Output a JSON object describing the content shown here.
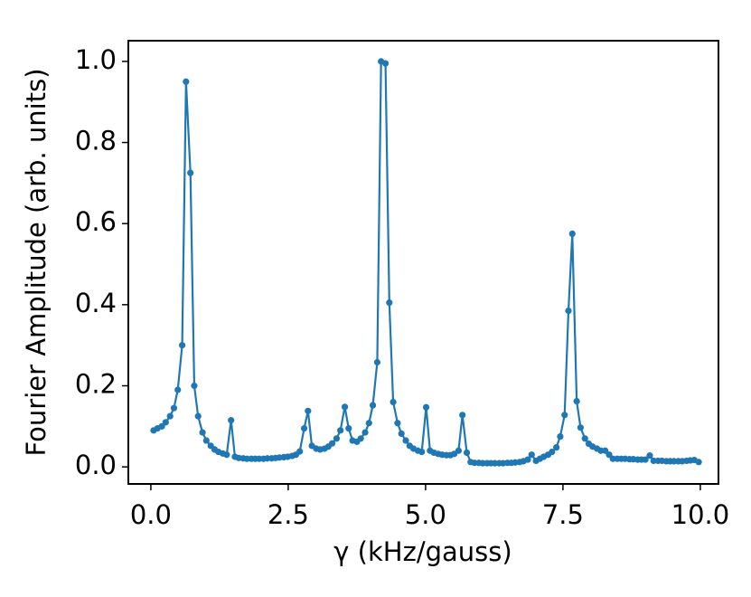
{
  "chart_data": {
    "type": "line",
    "xlabel": "γ (kHz/gauss)",
    "ylabel": "Fourier Amplitude (arb. units)",
    "x": [
      0.05,
      0.12,
      0.2,
      0.27,
      0.35,
      0.42,
      0.49,
      0.57,
      0.64,
      0.72,
      0.79,
      0.86,
      0.94,
      1.01,
      1.09,
      1.16,
      1.23,
      1.31,
      1.38,
      1.46,
      1.53,
      1.6,
      1.68,
      1.75,
      1.83,
      1.9,
      1.97,
      2.05,
      2.12,
      2.2,
      2.27,
      2.34,
      2.42,
      2.49,
      2.57,
      2.64,
      2.71,
      2.79,
      2.86,
      2.93,
      3.01,
      3.08,
      3.16,
      3.23,
      3.3,
      3.38,
      3.45,
      3.53,
      3.6,
      3.67,
      3.75,
      3.82,
      3.9,
      3.97,
      4.04,
      4.12,
      4.19,
      4.27,
      4.34,
      4.41,
      4.49,
      4.56,
      4.64,
      4.71,
      4.78,
      4.86,
      4.93,
      5.01,
      5.08,
      5.15,
      5.23,
      5.3,
      5.38,
      5.45,
      5.52,
      5.6,
      5.67,
      5.75,
      5.82,
      5.89,
      5.97,
      6.04,
      6.12,
      6.19,
      6.26,
      6.34,
      6.41,
      6.49,
      6.56,
      6.63,
      6.71,
      6.78,
      6.86,
      6.93,
      7.01,
      7.08,
      7.15,
      7.23,
      7.3,
      7.38,
      7.45,
      7.53,
      7.6,
      7.67,
      7.75,
      7.82,
      7.9,
      7.97,
      8.04,
      8.12,
      8.19,
      8.27,
      8.34,
      8.41,
      8.49,
      8.56,
      8.63,
      8.71,
      8.78,
      8.86,
      8.93,
      9.0,
      9.08,
      9.15,
      9.23,
      9.3,
      9.38,
      9.45,
      9.52,
      9.6,
      9.67,
      9.75,
      9.82,
      9.89,
      9.97
    ],
    "series": [
      {
        "color": "#1f77b4",
        "values": [
          0.09,
          0.095,
          0.1,
          0.11,
          0.125,
          0.145,
          0.19,
          0.3,
          0.95,
          0.725,
          0.2,
          0.125,
          0.085,
          0.065,
          0.052,
          0.043,
          0.037,
          0.033,
          0.03,
          0.115,
          0.025,
          0.022,
          0.021,
          0.02,
          0.02,
          0.02,
          0.02,
          0.02,
          0.021,
          0.021,
          0.022,
          0.023,
          0.024,
          0.025,
          0.027,
          0.03,
          0.038,
          0.095,
          0.138,
          0.052,
          0.045,
          0.043,
          0.045,
          0.05,
          0.058,
          0.07,
          0.09,
          0.148,
          0.095,
          0.065,
          0.062,
          0.07,
          0.085,
          0.108,
          0.152,
          0.258,
          1.0,
          0.995,
          0.405,
          0.16,
          0.108,
          0.082,
          0.065,
          0.052,
          0.045,
          0.04,
          0.037,
          0.147,
          0.04,
          0.035,
          0.032,
          0.03,
          0.029,
          0.029,
          0.032,
          0.04,
          0.128,
          0.035,
          0.012,
          0.01,
          0.01,
          0.009,
          0.009,
          0.009,
          0.009,
          0.009,
          0.009,
          0.01,
          0.01,
          0.011,
          0.012,
          0.014,
          0.018,
          0.03,
          0.015,
          0.02,
          0.025,
          0.03,
          0.037,
          0.048,
          0.075,
          0.128,
          0.385,
          0.575,
          0.162,
          0.097,
          0.07,
          0.057,
          0.05,
          0.045,
          0.04,
          0.04,
          0.03,
          0.02,
          0.02,
          0.02,
          0.02,
          0.019,
          0.019,
          0.018,
          0.018,
          0.018,
          0.028,
          0.015,
          0.015,
          0.015,
          0.014,
          0.014,
          0.014,
          0.014,
          0.014,
          0.015,
          0.016,
          0.017,
          0.012
        ]
      }
    ],
    "xlim": [
      -0.41,
      10.33
    ],
    "ylim": [
      -0.042,
      1.051
    ],
    "xticks": [
      {
        "value": 0,
        "label": "0.0"
      },
      2.5,
      {
        "value": 5,
        "label": "5.0"
      },
      7.5,
      {
        "value": 10,
        "label": "10.0"
      }
    ],
    "yticks": [
      {
        "value": 0,
        "label": "0.0"
      },
      0.2,
      0.4,
      0.6,
      0.8,
      {
        "value": 1,
        "label": "1.0"
      }
    ],
    "grid": false
  }
}
